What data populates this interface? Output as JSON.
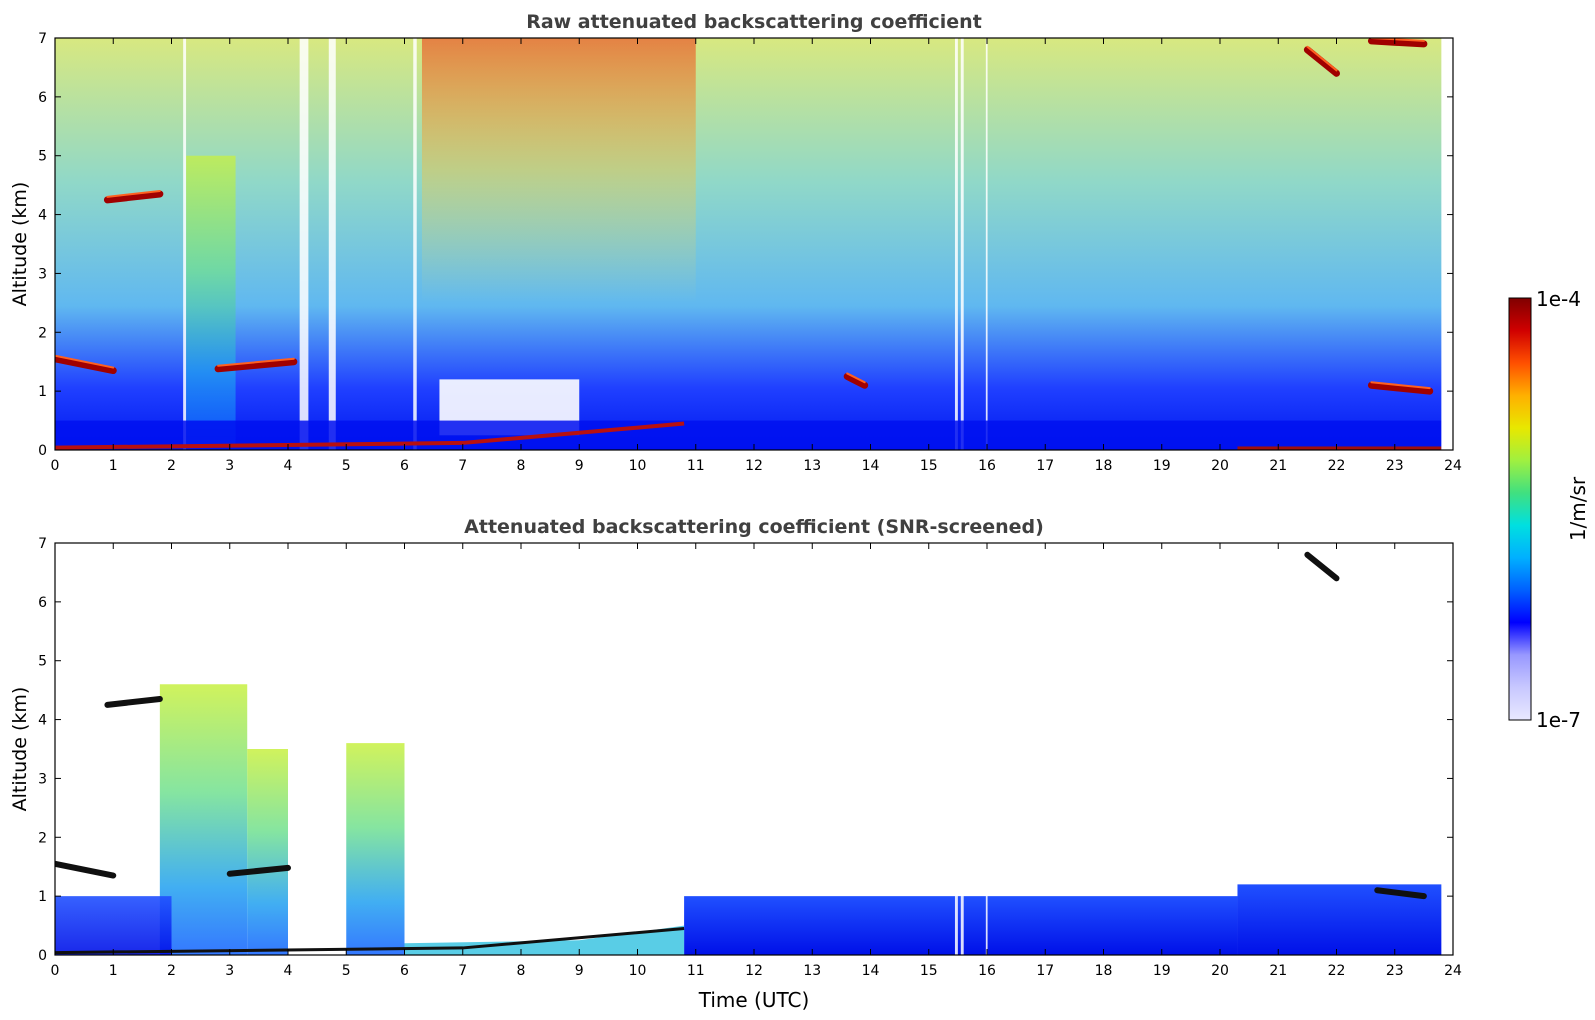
{
  "chart_data": [
    {
      "type": "heatmap",
      "title": "Raw attenuated backscattering coefficient",
      "xlabel": "",
      "ylabel": "Altitude (km)",
      "xlim": [
        0,
        24
      ],
      "ylim": [
        0,
        7
      ],
      "xticks": [
        "0",
        "1",
        "2",
        "3",
        "4",
        "5",
        "6",
        "7",
        "8",
        "9",
        "10",
        "11",
        "12",
        "13",
        "14",
        "15",
        "16",
        "17",
        "18",
        "19",
        "20",
        "21",
        "22",
        "23",
        "24"
      ],
      "yticks": [
        "0",
        "1",
        "2",
        "3",
        "4",
        "5",
        "6",
        "7"
      ],
      "features": [
        {
          "kind": "cloud",
          "t_start": 0.9,
          "t_end": 1.8,
          "alt_start": 4.25,
          "alt_end": 4.35
        },
        {
          "kind": "cloud",
          "t_start": 0.0,
          "t_end": 1.0,
          "alt_start": 1.55,
          "alt_end": 1.35
        },
        {
          "kind": "cloud",
          "t_start": 2.8,
          "t_end": 4.1,
          "alt_start": 1.38,
          "alt_end": 1.5
        },
        {
          "kind": "cloud",
          "t_start": 21.5,
          "t_end": 22.0,
          "alt_start": 6.8,
          "alt_end": 6.4
        },
        {
          "kind": "cloud",
          "t_start": 22.6,
          "t_end": 23.6,
          "alt_start": 1.1,
          "alt_end": 1.0
        },
        {
          "kind": "cloud",
          "t_start": 22.6,
          "t_end": 23.5,
          "alt_start": 6.95,
          "alt_end": 6.9
        },
        {
          "kind": "cloud",
          "t_start": 13.6,
          "t_end": 13.9,
          "alt_start": 1.25,
          "alt_end": 1.1
        },
        {
          "kind": "boundary_layer_top",
          "t_start": 7.0,
          "t_end": 10.8,
          "alt_start": 0.15,
          "alt_end": 0.45
        }
      ]
    },
    {
      "type": "heatmap",
      "title": "Attenuated backscattering coefficient (SNR-screened)",
      "xlabel": "Time (UTC)",
      "ylabel": "Altitude (km)",
      "xlim": [
        0,
        24
      ],
      "ylim": [
        0,
        7
      ],
      "xticks": [
        "0",
        "1",
        "2",
        "3",
        "4",
        "5",
        "6",
        "7",
        "8",
        "9",
        "10",
        "11",
        "12",
        "13",
        "14",
        "15",
        "16",
        "17",
        "18",
        "19",
        "20",
        "21",
        "22",
        "23",
        "24"
      ],
      "yticks": [
        "0",
        "1",
        "2",
        "3",
        "4",
        "5",
        "6",
        "7"
      ],
      "features": [
        {
          "kind": "aerosol_column",
          "t_start": 1.8,
          "t_end": 3.3,
          "alt_top": 4.6
        },
        {
          "kind": "aerosol_column",
          "t_start": 3.3,
          "t_end": 4.0,
          "alt_top": 3.5
        },
        {
          "kind": "aerosol_column",
          "t_start": 5.0,
          "t_end": 6.0,
          "alt_top": 3.6
        },
        {
          "kind": "low_layer",
          "t_start": 10.8,
          "t_end": 20.3,
          "alt_top": 1.0
        },
        {
          "kind": "low_layer",
          "t_start": 20.3,
          "t_end": 23.8,
          "alt_top": 1.2
        },
        {
          "kind": "cloud",
          "t_start": 0.9,
          "t_end": 1.8,
          "alt_start": 4.25,
          "alt_end": 4.35
        },
        {
          "kind": "cloud",
          "t_start": 0.0,
          "t_end": 1.0,
          "alt_start": 1.55,
          "alt_end": 1.35
        },
        {
          "kind": "cloud",
          "t_start": 3.0,
          "t_end": 4.0,
          "alt_start": 1.38,
          "alt_end": 1.48
        },
        {
          "kind": "cloud",
          "t_start": 21.5,
          "t_end": 22.0,
          "alt_start": 6.8,
          "alt_end": 6.4
        },
        {
          "kind": "cloud",
          "t_start": 22.7,
          "t_end": 23.5,
          "alt_start": 1.1,
          "alt_end": 1.0
        }
      ]
    }
  ],
  "colorbar": {
    "label": "1/m/sr",
    "max_label": "1e-4",
    "min_label": "1e-7",
    "scale": "log",
    "range": [
      1e-07,
      0.0001
    ],
    "colors": [
      "#e8e8ff",
      "#c8c8ff",
      "#9898ff",
      "#0000ff",
      "#0060ff",
      "#00b0ff",
      "#00e0e0",
      "#40e080",
      "#a0f040",
      "#e8e800",
      "#ffb000",
      "#ff5000",
      "#d00000",
      "#800000"
    ]
  }
}
